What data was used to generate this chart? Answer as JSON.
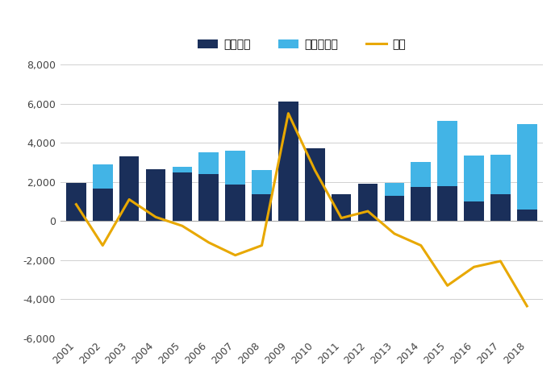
{
  "years": [
    2001,
    2002,
    2003,
    2004,
    2005,
    2006,
    2007,
    2008,
    2009,
    2010,
    2011,
    2012,
    2013,
    2014,
    2015,
    2016,
    2017,
    2018
  ],
  "shinki": [
    1950,
    1650,
    3300,
    2650,
    2500,
    2400,
    1850,
    1350,
    6100,
    3700,
    1350,
    1900,
    1300,
    1750,
    1800,
    1000,
    1350,
    600
  ],
  "jisha": [
    1100,
    2900,
    2200,
    2450,
    2750,
    3500,
    3600,
    2600,
    600,
    1100,
    1200,
    1400,
    1950,
    3000,
    5100,
    3350,
    3400,
    4950
  ],
  "sa": [
    850,
    -1250,
    1100,
    200,
    -250,
    -1100,
    -1750,
    -1250,
    5500,
    2600,
    150,
    500,
    -650,
    -1250,
    -3300,
    -2350,
    -2050,
    -4350
  ],
  "bar_color_shinki": "#1a2f5a",
  "bar_color_jisha": "#42b4e6",
  "line_color_sa": "#e8a800",
  "label_shinki": "新規増賃",
  "label_jisha": "自社株買い",
  "label_sa": "差額",
  "ylim_min": -6000,
  "ylim_max": 8000,
  "yticks": [
    -6000,
    -4000,
    -2000,
    0,
    2000,
    4000,
    6000,
    8000
  ],
  "background_color": "#ffffff",
  "grid_color": "#d0d0d0"
}
